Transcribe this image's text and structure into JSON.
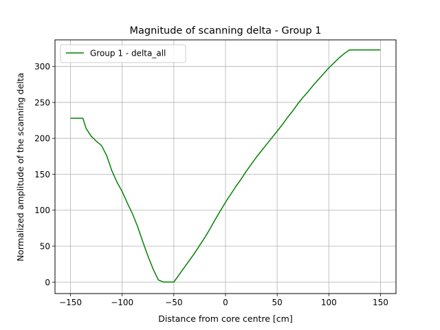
{
  "chart_data": {
    "type": "line",
    "title": "Magnitude of scanning delta - Group 1",
    "xlabel": "Distance from core centre [cm]",
    "ylabel": "Normalized amplitude of the scanning delta",
    "xlim": [
      -165,
      165
    ],
    "ylim": [
      -16,
      337
    ],
    "xticks": [
      -150,
      -100,
      -50,
      0,
      50,
      100,
      150
    ],
    "yticks": [
      0,
      50,
      100,
      150,
      200,
      250,
      300
    ],
    "xtick_labels": [
      "−150",
      "−100",
      "−50",
      "0",
      "50",
      "100",
      "150"
    ],
    "ytick_labels": [
      "0",
      "50",
      "100",
      "150",
      "200",
      "250",
      "300"
    ],
    "grid": true,
    "legend_position": "top-left",
    "series": [
      {
        "name": "Group 1 - delta_all",
        "color": "#008000",
        "x": [
          -150,
          -145,
          -140,
          -138,
          -135,
          -130,
          -125,
          -120,
          -115,
          -110,
          -105,
          -100,
          -95,
          -90,
          -85,
          -80,
          -75,
          -70,
          -65,
          -60,
          -55,
          -50,
          -45,
          -40,
          -35,
          -30,
          -25,
          -20,
          -15,
          -10,
          -5,
          0,
          5,
          10,
          15,
          20,
          25,
          30,
          35,
          40,
          45,
          50,
          55,
          60,
          65,
          70,
          75,
          80,
          85,
          90,
          95,
          100,
          105,
          110,
          115,
          120,
          125,
          130,
          135,
          140,
          143,
          145,
          150
        ],
        "y": [
          228,
          228,
          228,
          228,
          214,
          203,
          196,
          190,
          176,
          155,
          139,
          126,
          110,
          95,
          77,
          56,
          36,
          18,
          3,
          0,
          0,
          0,
          10,
          20,
          30,
          40,
          51,
          62,
          74,
          87,
          99,
          111,
          122,
          133,
          143,
          154,
          164,
          174,
          183,
          192,
          201,
          210,
          219,
          229,
          238,
          248,
          257,
          265,
          274,
          282,
          290,
          298,
          305,
          312,
          318,
          323,
          323,
          323,
          323,
          323,
          323,
          323,
          323
        ]
      }
    ]
  }
}
